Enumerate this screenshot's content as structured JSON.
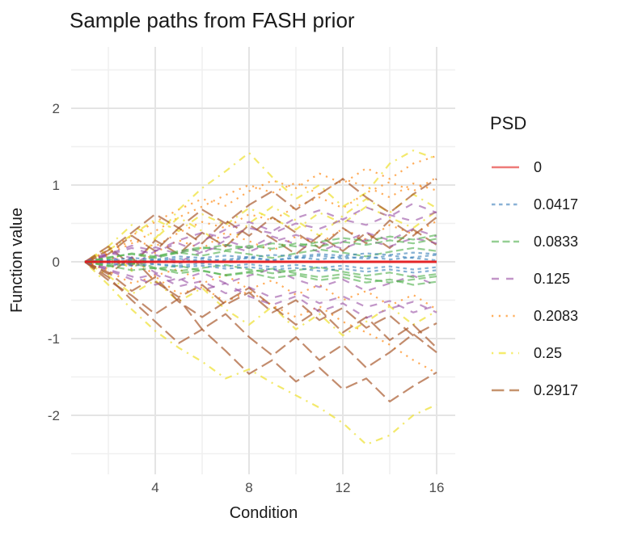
{
  "chart_data": {
    "type": "line",
    "title": "Sample paths from FASH prior",
    "xlabel": "Condition",
    "ylabel": "Function value",
    "x": [
      1,
      2,
      3,
      4,
      5,
      6,
      7,
      8,
      9,
      10,
      11,
      12,
      13,
      14,
      15,
      16
    ],
    "xlim": [
      0.4,
      16.8
    ],
    "ylim": [
      -2.77,
      2.78
    ],
    "x_ticks": [
      4,
      8,
      12,
      16
    ],
    "y_ticks": [
      -2,
      -1,
      0,
      1,
      2
    ],
    "x_minor": [
      2,
      6,
      10,
      14
    ],
    "y_minor": [
      -2.5,
      -1.5,
      -0.5,
      0.5,
      1.5,
      2.5
    ],
    "grid": true,
    "legend_position": "right",
    "series": [
      {
        "psd": "0.2083",
        "color": "#FF7F00",
        "dash": "2.2 6.6",
        "width": 2.2,
        "opacity": 0.65,
        "paths": [
          [
            0,
            0.15,
            0.34,
            0.52,
            0.68,
            0.82,
            0.73,
            0.92,
            1.06,
            0.96,
            1.15,
            1.02,
            1.22,
            1.08,
            1.28,
            1.38
          ],
          [
            0,
            0.1,
            0.24,
            0.4,
            0.58,
            0.72,
            0.87,
            1.0,
            0.9,
            1.03,
            0.88,
            1.08,
            0.98,
            0.84,
            1.02,
            0.93
          ],
          [
            0,
            -0.12,
            -0.28,
            -0.19,
            -0.42,
            -0.33,
            -0.52,
            -0.38,
            -0.57,
            -0.72,
            -0.58,
            -0.78,
            -0.92,
            -1.08,
            -1.28,
            -1.45
          ],
          [
            0,
            0.08,
            -0.09,
            0.12,
            0.28,
            0.17,
            0.38,
            0.27,
            0.14,
            0.33,
            0.24,
            0.43,
            0.29,
            0.48,
            0.36,
            0.53
          ],
          [
            0,
            -0.09,
            0.05,
            -0.18,
            -0.09,
            -0.28,
            -0.17,
            -0.36,
            -0.24,
            -0.43,
            -0.3,
            -0.5,
            -0.38,
            -0.57,
            -0.43,
            -0.62
          ],
          [
            0,
            0.12,
            0.28,
            0.2,
            0.38,
            0.52,
            0.44,
            0.62,
            0.54,
            0.72,
            0.84,
            0.7,
            0.9,
            1.04,
            0.92,
            1.1
          ]
        ]
      },
      {
        "psd": "0.25",
        "color": "#EFE23B",
        "dash": "2.2 6.6 8.8 6.6",
        "width": 2.2,
        "opacity": 0.75,
        "paths": [
          [
            0,
            0.2,
            0.48,
            0.3,
            0.68,
            0.96,
            1.18,
            1.42,
            1.1,
            0.82,
            1.0,
            0.72,
            0.9,
            1.28,
            1.45,
            1.34
          ],
          [
            0,
            -0.3,
            -0.62,
            -0.9,
            -1.12,
            -1.3,
            -1.52,
            -1.4,
            -1.58,
            -1.74,
            -1.9,
            -2.1,
            -2.38,
            -2.26,
            -2.0,
            -1.86
          ],
          [
            0,
            0.18,
            -0.12,
            0.3,
            0.58,
            0.4,
            0.2,
            0.5,
            0.72,
            0.54,
            0.34,
            0.6,
            0.82,
            0.64,
            0.88,
            0.7
          ],
          [
            0,
            -0.18,
            -0.42,
            -0.24,
            -0.52,
            -0.34,
            -0.62,
            -0.82,
            -0.58,
            -0.88,
            -0.68,
            -0.96,
            -0.78,
            -0.58,
            -0.82,
            -0.64
          ],
          [
            0,
            0.15,
            0.35,
            0.55,
            0.4,
            0.62,
            0.48,
            0.7,
            0.56,
            0.42,
            0.64,
            0.5,
            0.72,
            0.58,
            0.44,
            0.66
          ]
        ]
      },
      {
        "psd": "0.2917",
        "color": "#A65628",
        "dash": "15.4 6.6",
        "width": 2.2,
        "opacity": 0.68,
        "paths": [
          [
            0,
            -0.2,
            -0.5,
            -0.78,
            -1.06,
            -0.88,
            -1.16,
            -1.46,
            -1.28,
            -1.56,
            -1.38,
            -1.66,
            -1.52,
            -1.82,
            -1.62,
            -1.44
          ],
          [
            0,
            0.15,
            0.38,
            0.62,
            0.44,
            0.68,
            0.5,
            0.74,
            0.92,
            0.68,
            0.88,
            1.08,
            0.84,
            0.64,
            0.88,
            1.08
          ],
          [
            0,
            -0.14,
            -0.38,
            -0.2,
            -0.52,
            -0.72,
            -0.52,
            -0.34,
            -0.58,
            -0.82,
            -0.62,
            -0.92,
            -0.72,
            -1.02,
            -0.82,
            -1.12
          ],
          [
            0,
            0.2,
            -0.05,
            0.28,
            0.1,
            0.38,
            0.2,
            0.48,
            0.3,
            0.1,
            0.34,
            0.14,
            0.38,
            0.18,
            0.42,
            0.22
          ],
          [
            0,
            -0.24,
            -0.44,
            -0.68,
            -0.48,
            -0.88,
            -0.68,
            -0.98,
            -1.22,
            -0.98,
            -1.28,
            -1.08,
            -1.38,
            -1.18,
            -0.94,
            -1.18
          ],
          [
            0,
            0.1,
            0.34,
            0.14,
            0.44,
            0.24,
            0.54,
            0.34,
            0.58,
            0.38,
            0.18,
            0.44,
            0.24,
            0.54,
            0.34,
            0.58
          ],
          [
            0,
            -0.16,
            0.06,
            -0.26,
            -0.46,
            -0.3,
            -0.56,
            -0.4,
            -0.66,
            -0.5,
            -0.76,
            -0.6,
            -0.86,
            -0.7,
            -0.96,
            -0.8
          ]
        ]
      },
      {
        "psd": "0.125",
        "color": "#984EA3",
        "dash": "9 9",
        "width": 2.2,
        "opacity": 0.6,
        "paths": [
          [
            0,
            0.1,
            0.21,
            0.14,
            0.28,
            0.38,
            0.31,
            0.44,
            0.37,
            0.5,
            0.43,
            0.55,
            0.48,
            0.61,
            0.53,
            0.65
          ],
          [
            0,
            -0.11,
            -0.23,
            -0.16,
            -0.32,
            -0.25,
            -0.41,
            -0.33,
            -0.47,
            -0.39,
            -0.54,
            -0.45,
            -0.59,
            -0.51,
            -0.66,
            -0.57
          ],
          [
            0,
            0.08,
            -0.05,
            0.14,
            0.24,
            0.11,
            0.28,
            0.18,
            0.33,
            0.23,
            0.13,
            0.26,
            0.38,
            0.28,
            0.43,
            0.33
          ],
          [
            0,
            -0.08,
            0.05,
            -0.14,
            -0.24,
            -0.14,
            -0.28,
            -0.18,
            -0.09,
            -0.23,
            -0.33,
            -0.23,
            -0.38,
            -0.28,
            -0.18,
            -0.31
          ],
          [
            0,
            0.12,
            0.05,
            0.19,
            0.1,
            0.27,
            0.42,
            0.52,
            0.4,
            0.57,
            0.67,
            0.55,
            0.71,
            0.59,
            0.76,
            0.64
          ],
          [
            0,
            -0.1,
            -0.19,
            -0.3,
            -0.21,
            -0.37,
            -0.28,
            -0.45,
            -0.56,
            -0.45,
            -0.65,
            -0.54,
            -0.73,
            -0.61,
            -0.52,
            -0.66
          ],
          [
            0,
            0.09,
            0.18,
            0.09,
            0.0,
            0.13,
            0.22,
            0.13,
            0.26,
            0.35,
            0.26,
            0.17,
            0.29,
            0.2,
            0.31,
            0.24
          ]
        ]
      },
      {
        "psd": "0.0833",
        "color": "#4DAF4A",
        "dash": "9 4.5",
        "width": 2.2,
        "opacity": 0.6,
        "paths": [
          [
            0,
            0.05,
            0.11,
            0.07,
            0.14,
            0.19,
            0.15,
            0.21,
            0.17,
            0.24,
            0.2,
            0.26,
            0.22,
            0.28,
            0.24,
            0.3
          ],
          [
            0,
            -0.05,
            -0.11,
            -0.08,
            -0.15,
            -0.11,
            -0.18,
            -0.14,
            -0.21,
            -0.17,
            -0.24,
            -0.2,
            -0.27,
            -0.23,
            -0.3,
            -0.26
          ],
          [
            0,
            0.04,
            -0.03,
            0.07,
            0.12,
            0.08,
            0.14,
            0.1,
            0.05,
            0.11,
            0.16,
            0.12,
            0.07,
            0.13,
            0.18,
            0.14
          ],
          [
            0,
            -0.04,
            0.03,
            -0.08,
            -0.12,
            -0.08,
            -0.04,
            -0.1,
            -0.15,
            -0.11,
            -0.07,
            -0.13,
            -0.18,
            -0.14,
            -0.2,
            -0.16
          ],
          [
            0,
            0.06,
            0.1,
            0.05,
            0.12,
            0.17,
            0.22,
            0.18,
            0.24,
            0.2,
            0.26,
            0.31,
            0.27,
            0.33,
            0.29,
            0.35
          ],
          [
            0,
            -0.06,
            -0.02,
            -0.09,
            -0.05,
            -0.12,
            -0.17,
            -0.13,
            -0.09,
            -0.15,
            -0.2,
            -0.16,
            -0.22,
            -0.27,
            -0.23,
            -0.19
          ]
        ]
      },
      {
        "psd": "0.0417",
        "color": "#377EB8",
        "dash": "4.5 4.5",
        "width": 2.2,
        "opacity": 0.6,
        "paths": [
          [
            0,
            0.02,
            0.05,
            0.03,
            0.07,
            0.05,
            0.08,
            0.06,
            0.09,
            0.07,
            0.1,
            0.08,
            0.11,
            0.09,
            0.12,
            0.1
          ],
          [
            0,
            -0.02,
            -0.05,
            -0.03,
            -0.07,
            -0.05,
            -0.09,
            -0.07,
            -0.1,
            -0.08,
            -0.12,
            -0.09,
            -0.13,
            -0.1,
            -0.14,
            -0.11
          ],
          [
            0,
            0.01,
            -0.02,
            0.02,
            0.04,
            0.01,
            0.03,
            0.06,
            0.02,
            0.05,
            0.08,
            0.04,
            0.07,
            0.03,
            0.06,
            0.09
          ],
          [
            0,
            -0.01,
            0.02,
            -0.03,
            -0.05,
            -0.02,
            -0.06,
            -0.03,
            -0.07,
            -0.04,
            -0.08,
            -0.05,
            -0.09,
            -0.06,
            -0.1,
            -0.07
          ],
          [
            0,
            0.02,
            -0.01,
            0.03,
            -0.02,
            0.04,
            0.01,
            0.05,
            0.02,
            0.06,
            0.03,
            0.07,
            0.04,
            0.08,
            0.05,
            0.02
          ]
        ]
      },
      {
        "psd": "0",
        "color": "#E41A1C",
        "dash": "none",
        "width": 3,
        "opacity": 0.95,
        "paths": [
          [
            0,
            0,
            0,
            0,
            0,
            0,
            0,
            0,
            0,
            0,
            0,
            0,
            0,
            0,
            0,
            0
          ]
        ]
      }
    ]
  },
  "legend": {
    "title": "PSD",
    "entries": [
      {
        "label": "0",
        "color": "#EE7A78",
        "dash": "none"
      },
      {
        "label": "0.0417",
        "color": "#8AB2D6",
        "dash": "4.5 4.5"
      },
      {
        "label": "0.0833",
        "color": "#95CF93",
        "dash": "9 4.5"
      },
      {
        "label": "0.125",
        "color": "#C295C8",
        "dash": "9 9"
      },
      {
        "label": "0.2083",
        "color": "#FFAE5C",
        "dash": "2.2 6.6"
      },
      {
        "label": "0.25",
        "color": "#F6EC6C",
        "dash": "2.2 6.6 8.8 6.6"
      },
      {
        "label": "0.2917",
        "color": "#C6946F",
        "dash": "15.4 6.6"
      }
    ]
  },
  "colors": {
    "grid_major": "#E4E4E4",
    "grid_minor": "#F0F0F0",
    "tick_label": "#4D4D4D",
    "text": "#1A1A1A"
  }
}
